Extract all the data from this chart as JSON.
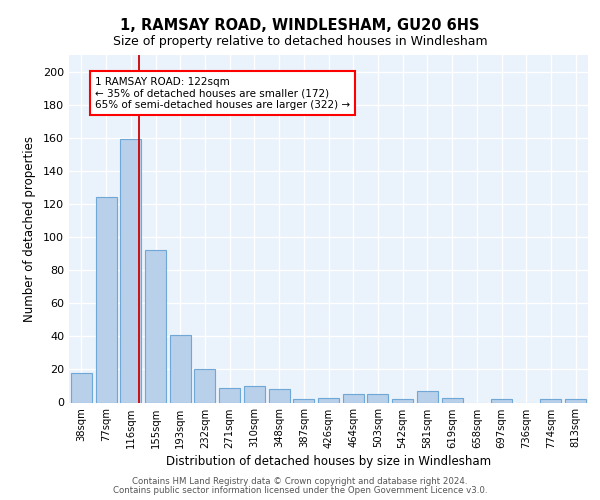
{
  "title_line1": "1, RAMSAY ROAD, WINDLESHAM, GU20 6HS",
  "title_line2": "Size of property relative to detached houses in Windlesham",
  "xlabel": "Distribution of detached houses by size in Windlesham",
  "ylabel": "Number of detached properties",
  "categories": [
    "38sqm",
    "77sqm",
    "116sqm",
    "155sqm",
    "193sqm",
    "232sqm",
    "271sqm",
    "310sqm",
    "348sqm",
    "387sqm",
    "426sqm",
    "464sqm",
    "503sqm",
    "542sqm",
    "581sqm",
    "619sqm",
    "658sqm",
    "697sqm",
    "736sqm",
    "774sqm",
    "813sqm"
  ],
  "values": [
    18,
    124,
    159,
    92,
    41,
    20,
    9,
    10,
    8,
    2,
    3,
    5,
    5,
    2,
    7,
    3,
    0,
    2,
    0,
    2,
    2
  ],
  "bar_color": "#B8D0EA",
  "bar_edge_color": "#6FA8D6",
  "red_line_x": 2.35,
  "annotation_text": "1 RAMSAY ROAD: 122sqm\n← 35% of detached houses are smaller (172)\n65% of semi-detached houses are larger (322) →",
  "annotation_box_color": "white",
  "annotation_box_edge_color": "red",
  "red_line_color": "#CC0000",
  "background_color": "#EAF2FB",
  "grid_color": "white",
  "ylim": [
    0,
    210
  ],
  "yticks": [
    0,
    20,
    40,
    60,
    80,
    100,
    120,
    140,
    160,
    180,
    200
  ],
  "footer_line1": "Contains HM Land Registry data © Crown copyright and database right 2024.",
  "footer_line2": "Contains public sector information licensed under the Open Government Licence v3.0."
}
